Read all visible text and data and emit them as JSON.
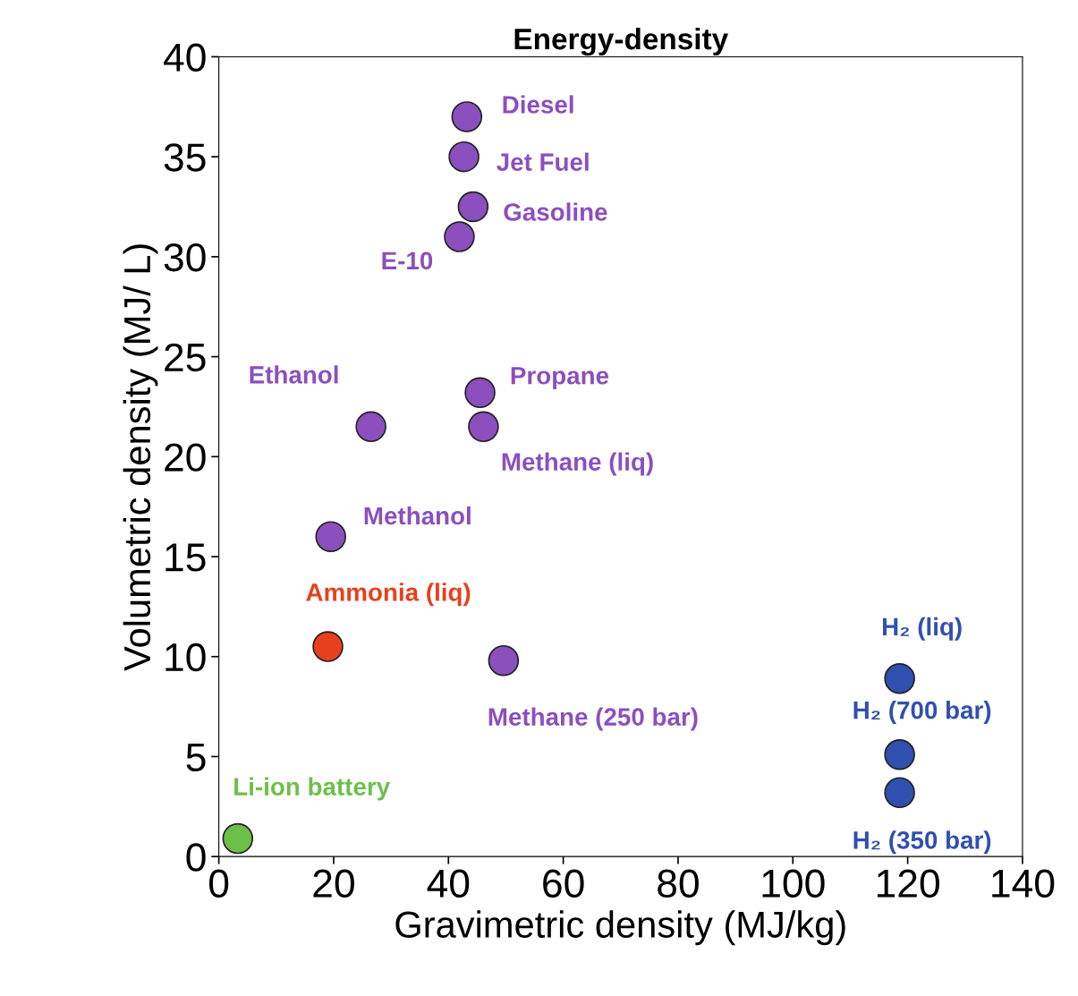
{
  "chart_data": {
    "type": "scatter",
    "title": "Energy-density",
    "xlabel": "Gravimetric density (MJ/kg)",
    "ylabel": "Volumetric density (MJ/ L)",
    "xlim": [
      0,
      140
    ],
    "xticks": [
      0,
      20,
      40,
      60,
      80,
      100,
      120,
      140
    ],
    "ylim": [
      0,
      40
    ],
    "yticks": [
      0,
      5,
      10,
      15,
      20,
      25,
      30,
      35,
      40
    ],
    "marker": "circle",
    "series": [
      {
        "name": "Diesel",
        "color": "#8b4fbe",
        "x": [
          43.2
        ],
        "values": [
          37.0
        ]
      },
      {
        "name": "Jet Fuel",
        "color": "#8b4fbe",
        "x": [
          42.7
        ],
        "values": [
          35.0
        ]
      },
      {
        "name": "Gasoline",
        "color": "#8b4fbe",
        "x": [
          44.3
        ],
        "values": [
          32.5
        ]
      },
      {
        "name": "E-10",
        "color": "#8b4fbe",
        "x": [
          41.9
        ],
        "values": [
          31.0
        ]
      },
      {
        "name": "Ethanol",
        "color": "#8b4fbe",
        "x": [
          26.5
        ],
        "values": [
          21.5
        ]
      },
      {
        "name": "Propane",
        "color": "#8b4fbe",
        "x": [
          45.5
        ],
        "values": [
          23.2
        ]
      },
      {
        "name": "Methane (liq)",
        "color": "#8b4fbe",
        "x": [
          46.1
        ],
        "values": [
          21.5
        ]
      },
      {
        "name": "Methanol",
        "color": "#8b4fbe",
        "x": [
          19.5
        ],
        "values": [
          16.0
        ]
      },
      {
        "name": "Ammonia (liq)",
        "color": "#e8401c",
        "x": [
          19.0
        ],
        "values": [
          10.5
        ]
      },
      {
        "name": "Methane (250 bar)",
        "color": "#8b4fbe",
        "x": [
          49.6
        ],
        "values": [
          9.8
        ]
      },
      {
        "name": "H₂ (liq)",
        "color": "#3050b0",
        "x": [
          118.6
        ],
        "values": [
          8.9
        ]
      },
      {
        "name": "H₂ (700 bar)",
        "color": "#3050b0",
        "x": [
          118.6
        ],
        "values": [
          5.1
        ]
      },
      {
        "name": "H₂ (350 bar)",
        "color": "#3050b0",
        "x": [
          118.6
        ],
        "values": [
          3.2
        ]
      },
      {
        "name": "Li-ion battery",
        "color": "#6cc04a",
        "x": [
          3.3
        ],
        "values": [
          0.9
        ]
      }
    ]
  }
}
